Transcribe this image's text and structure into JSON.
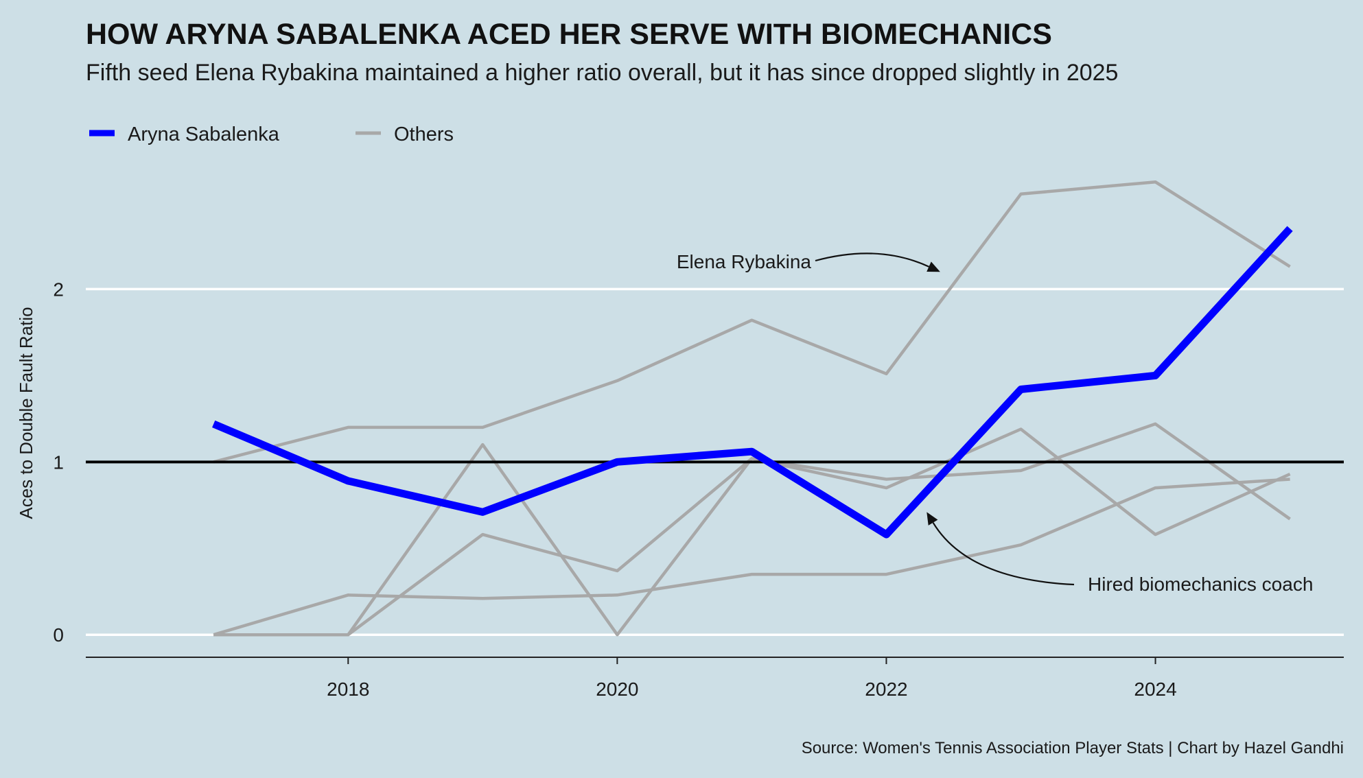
{
  "chart_data": {
    "type": "line",
    "title": "HOW ARYNA SABALENKA ACED HER SERVE WITH BIOMECHANICS",
    "subtitle": "Fifth seed Elena Rybakina maintained a higher ratio overall, but it has since dropped slightly in 2025",
    "ylabel": "Aces to Double Fault Ratio",
    "xlabel": "",
    "xlim": [
      2016.05,
      2025.4
    ],
    "ylim": [
      -0.13,
      2.72
    ],
    "x_ticks": [
      "2018",
      "2020",
      "2022",
      "2024"
    ],
    "y_ticks": [
      "0",
      "1",
      "2"
    ],
    "reference_line": 1,
    "grid": "horizontal",
    "legend_position": "top-left",
    "legend": [
      {
        "label": "Aryna Sabalenka",
        "color": "#0000ff"
      },
      {
        "label": "Others",
        "color": "#a8a8a8"
      }
    ],
    "x": [
      2017,
      2018,
      2019,
      2020,
      2021,
      2022,
      2023,
      2024,
      2025
    ],
    "series": [
      {
        "name": "Aryna Sabalenka",
        "color": "#0000ff",
        "values": [
          1.22,
          0.89,
          0.71,
          1.0,
          1.06,
          0.58,
          1.42,
          1.5,
          2.35
        ]
      },
      {
        "color": "#a8a8a8",
        "values": [
          1.0,
          1.2,
          1.2,
          1.47,
          1.82,
          1.51,
          2.55,
          2.62,
          2.13
        ]
      },
      {
        "color": "#a8a8a8",
        "values": [
          0.0,
          0.0,
          1.1,
          0.0,
          1.02,
          0.9,
          0.95,
          1.22,
          0.67
        ]
      },
      {
        "color": "#a8a8a8",
        "values": [
          0.0,
          0.0,
          0.58,
          0.37,
          1.02,
          0.85,
          1.19,
          0.58,
          0.93
        ]
      },
      {
        "color": "#a8a8a8",
        "values": [
          0.0,
          0.23,
          0.21,
          0.23,
          0.35,
          0.35,
          0.52,
          0.85,
          0.9
        ]
      }
    ],
    "annotations": [
      {
        "text": "Elena Rybakina",
        "target": {
          "x": 2022.4,
          "y": 2.1
        }
      },
      {
        "text": "Hired biomechanics coach",
        "target": {
          "x": 2022.3,
          "y": 0.71
        }
      }
    ],
    "source": "Source: Women's Tennis Association Player Stats | Chart by Hazel Gandhi"
  }
}
